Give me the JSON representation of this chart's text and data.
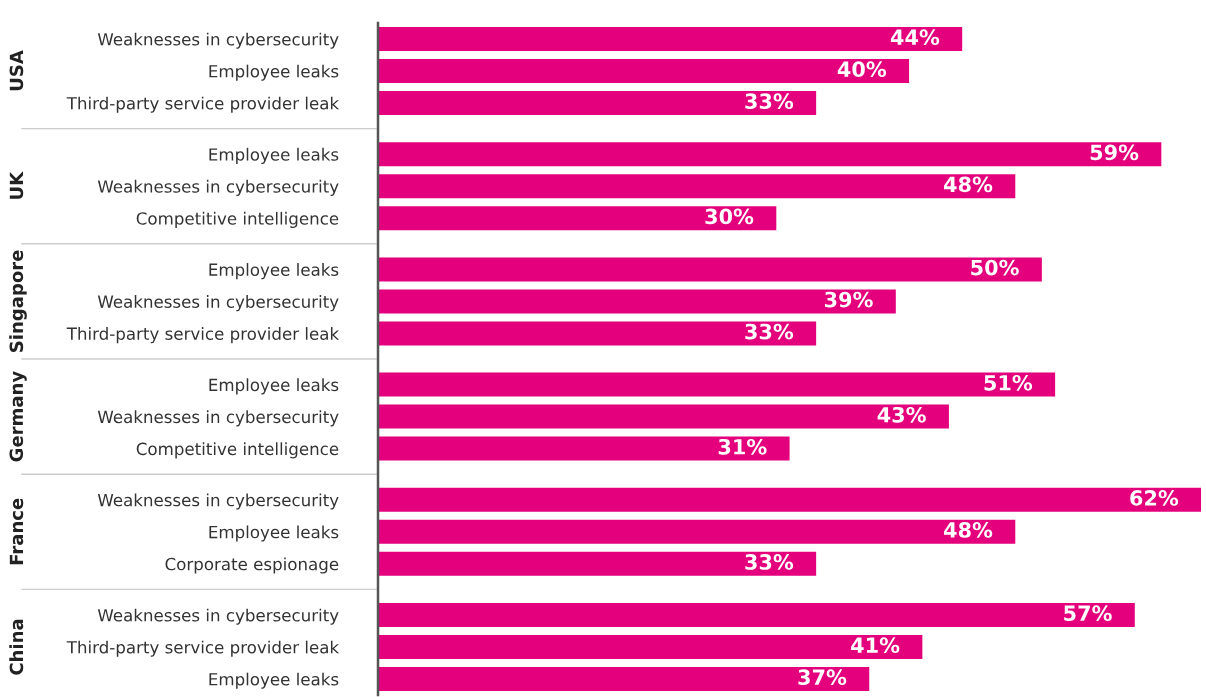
{
  "chart_data": {
    "type": "bar",
    "orientation": "horizontal",
    "color": "#e4007c",
    "categories": [
      "Weaknesses in cybersecurity",
      "Employee leaks",
      "Third-party service provider leak",
      "Employee leaks",
      "Weaknesses in cybersecurity",
      "Competitive intelligence",
      "Employee leaks",
      "Weaknesses in cybersecurity",
      "Third-party service provider leak",
      "Employee leaks",
      "Weaknesses in cybersecurity",
      "Competitive intelligence",
      "Weaknesses in cybersecurity",
      "Employee leaks",
      "Corporate espionage",
      "Weaknesses in cybersecurity",
      "Third-party service provider leak",
      "Employee leaks"
    ],
    "values": [
      44,
      40,
      33,
      59,
      48,
      30,
      50,
      39,
      33,
      51,
      43,
      31,
      62,
      48,
      33,
      57,
      41,
      37
    ],
    "value_labels": [
      "44%",
      "40%",
      "33%",
      "59%",
      "48%",
      "30%",
      "50%",
      "39%",
      "33%",
      "51%",
      "43%",
      "31%",
      "62%",
      "48%",
      "33%",
      "57%",
      "41%",
      "37%"
    ],
    "annotations": [
      "USA",
      "UK",
      "Singapore",
      "Germany",
      "France",
      "China"
    ],
    "grid": false,
    "legend": false
  }
}
